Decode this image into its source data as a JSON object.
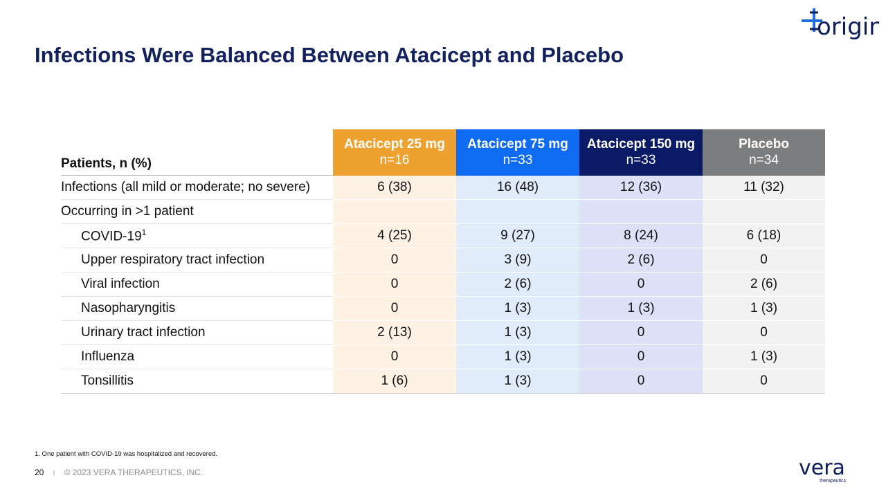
{
  "header": {
    "title": "Infections Were Balanced Between Atacicept and Placebo",
    "logo": "origin"
  },
  "table": {
    "stub_header": "Patients, n (%)",
    "columns": [
      {
        "name": "Atacicept 25 mg",
        "n": "n=16",
        "header_color": "#eea12f",
        "body_color": "#fdf2e3"
      },
      {
        "name": "Atacicept 75 mg",
        "n": "n=33",
        "header_color": "#0f6cf2",
        "body_color": "#e1ecfb"
      },
      {
        "name": "Atacicept 150 mg",
        "n": "n=33",
        "header_color": "#0a1a66",
        "body_color": "#dce1f8"
      },
      {
        "name": "Placebo",
        "n": "n=34",
        "header_color": "#7b7d7f",
        "body_color": "#f2f2f2"
      }
    ],
    "rows": [
      {
        "label": "Infections (all mild or moderate; no severe)",
        "cells": [
          "6 (38)",
          "16 (48)",
          "12 (36)",
          "11 (32)"
        ]
      },
      {
        "label": "Occurring in >1 patient",
        "cells": []
      },
      {
        "label": "COVID-19",
        "sup": "1",
        "indent": true,
        "cells": [
          "4 (25)",
          "9 (27)",
          "8 (24)",
          "6 (18)"
        ]
      },
      {
        "label": "Upper respiratory tract infection",
        "indent": true,
        "cells": [
          "0",
          "3 (9)",
          "2 (6)",
          "0"
        ]
      },
      {
        "label": "Viral infection",
        "indent": true,
        "cells": [
          "0",
          "2 (6)",
          "0",
          "2 (6)"
        ]
      },
      {
        "label": "Nasopharyngitis",
        "indent": true,
        "cells": [
          "0",
          "1 (3)",
          "1 (3)",
          "1 (3)"
        ]
      },
      {
        "label": "Urinary tract infection",
        "indent": true,
        "cells": [
          "2 (13)",
          "1 (3)",
          "0",
          "0"
        ]
      },
      {
        "label": "Influenza",
        "indent": true,
        "cells": [
          "0",
          "1 (3)",
          "0",
          "1 (3)"
        ]
      },
      {
        "label": "Tonsillitis",
        "indent": true,
        "cells": [
          "1 (6)",
          "1 (3)",
          "0",
          "0"
        ]
      }
    ]
  },
  "footnote": "1. One patient with COVID-19 was hospitalized and recovered.",
  "footer": {
    "page": "20",
    "separator": "I",
    "copyright": "© 2023 VERA THERAPEUTICS, INC.",
    "logo": "vera",
    "logo_sub": "therapeutics"
  }
}
